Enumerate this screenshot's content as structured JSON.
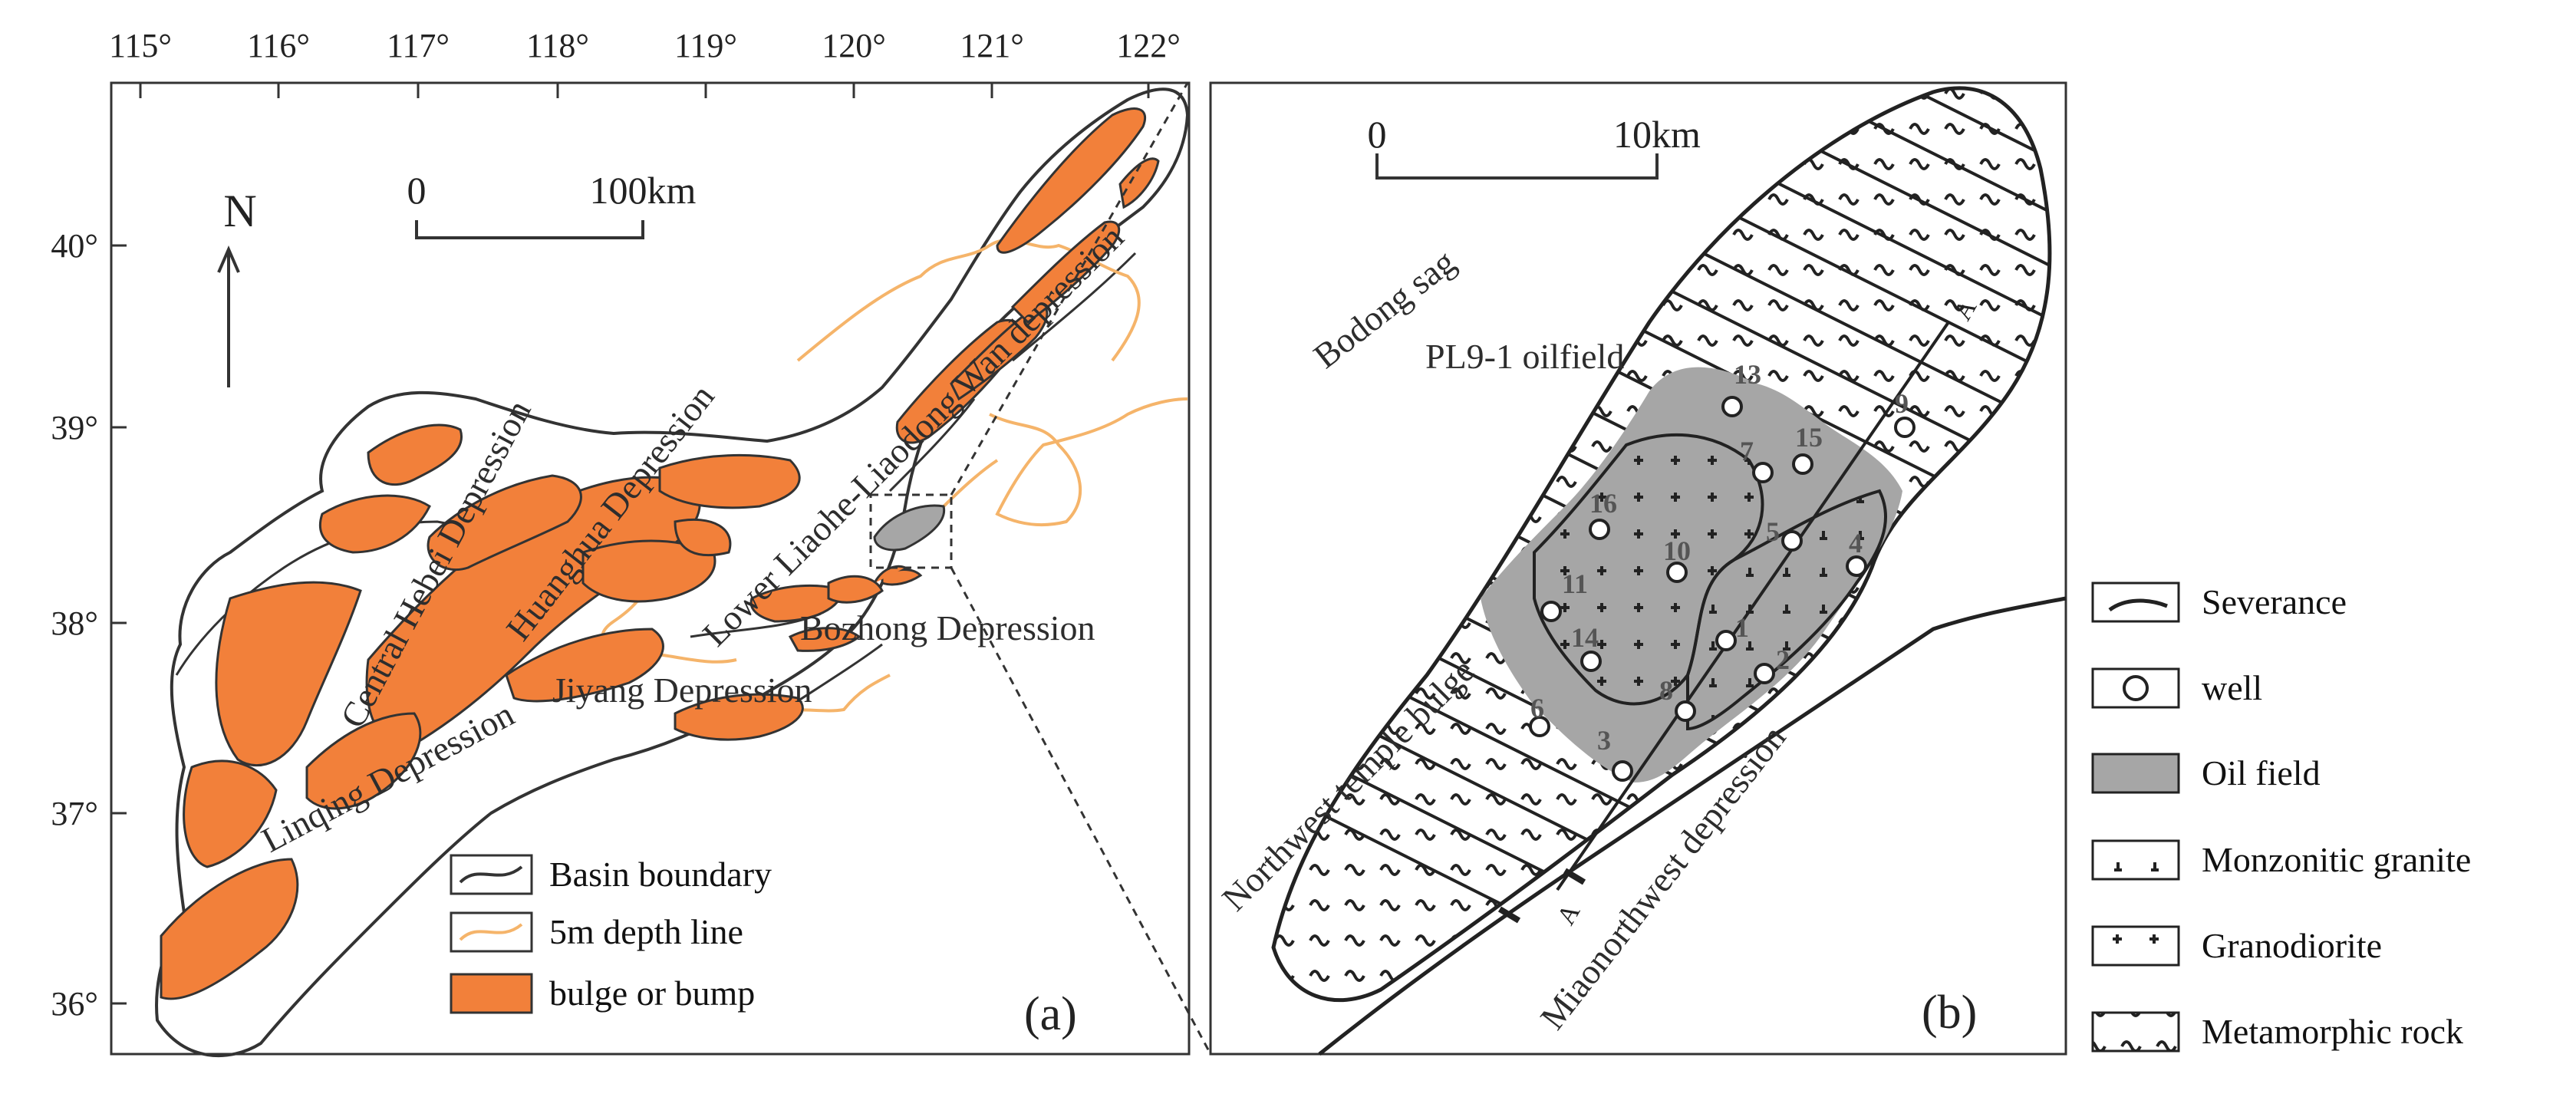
{
  "map_a": {
    "lon_ticks": [
      "115°",
      "116°",
      "117°",
      "118°",
      "119°",
      "120°",
      "121°",
      "122°"
    ],
    "lat_ticks": [
      "40°",
      "39°",
      "38°",
      "37°",
      "36°"
    ],
    "north_label": "N",
    "scale": {
      "zero": "0",
      "max": "100km"
    },
    "regions": [
      "Central Hebei Depression",
      "Huanghua Depression",
      "Lower Liaohe-Liaodong Wan depression",
      "Jiyang Depression",
      "Linqing Depression",
      "Bozhong Depression"
    ],
    "legend": [
      {
        "label": "Basin boundary",
        "symbol": "basin-boundary"
      },
      {
        "label": "5m depth line",
        "symbol": "depth-line"
      },
      {
        "label": "bulge or bump",
        "symbol": "bulge"
      }
    ],
    "panel_label": "(a)"
  },
  "map_b": {
    "scale": {
      "zero": "0",
      "max": "10km"
    },
    "labels": {
      "bodong": "Bodong sag",
      "oilfield": "PL9-1 oilfield",
      "northwest": "Northwest temple bulge",
      "miao": "Miaonorthwest depression",
      "section_end_1": "A",
      "section_end_2": "A"
    },
    "wells": [
      "1",
      "2",
      "3",
      "4",
      "5",
      "6",
      "7",
      "8",
      "9",
      "10",
      "11",
      "13",
      "14",
      "15",
      "16"
    ],
    "panel_label": "(b)"
  },
  "legend_b": [
    {
      "label": "Severance",
      "symbol": "fault-icon"
    },
    {
      "label": "well",
      "symbol": "well-icon"
    },
    {
      "label": "Oil field",
      "symbol": "oil-field-swatch"
    },
    {
      "label": "Monzonitic granite",
      "symbol": "monzonitic-granite-swatch"
    },
    {
      "label": "Granodiorite",
      "symbol": "granodiorite-swatch"
    },
    {
      "label": "Metamorphic rock",
      "symbol": "metamorphic-rock-swatch"
    }
  ],
  "colors": {
    "bulge": "#f2803a",
    "depth_line": "#f5b46a",
    "oil_field": "#a6a6a6",
    "line": "#333333"
  }
}
